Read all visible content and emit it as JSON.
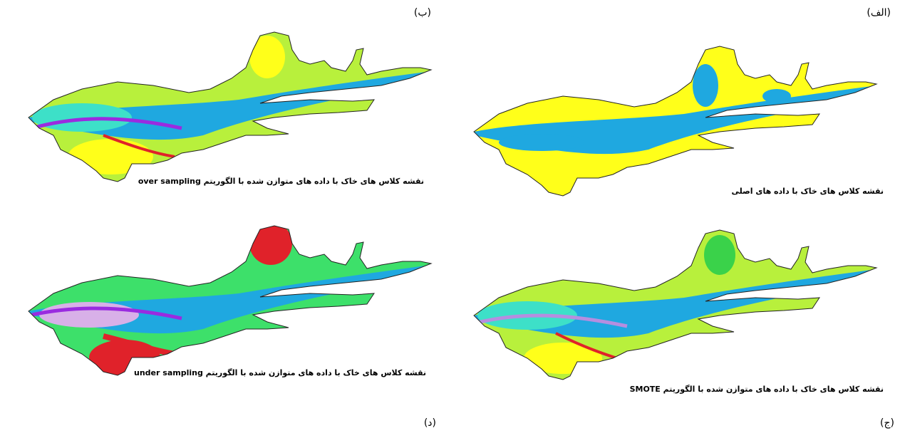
{
  "panels": [
    {
      "label": "(الف)",
      "caption": "نقشه کلاس های خاک با داده های اصلی"
    },
    {
      "label": "(ب)",
      "caption": "نقشه کلاس های خاک با داده های متوازن شده با الگوریتم over sampling"
    },
    {
      "label": "(ج)",
      "caption": "نقشه کلاس های خاک با داده های متوازن شده با الگوریتم SMOTE"
    },
    {
      "label": "(د)",
      "caption": "نقشه کلاس های خاک با داده های متوازن شده با الگوریتم under sampling"
    }
  ]
}
